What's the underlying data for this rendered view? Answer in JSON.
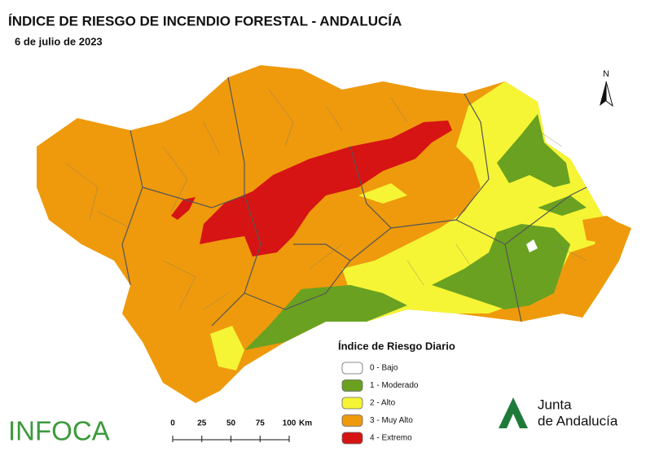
{
  "header": {
    "title": "ÍNDICE DE RIESGO DE INCENDIO FORESTAL - ANDALUCÍA",
    "date": "6 de julio de 2023"
  },
  "legend": {
    "title": "Índice de Riesgo Diario",
    "items": [
      {
        "label": "0 - Bajo",
        "color": "#ffffff"
      },
      {
        "label": "1 - Moderado",
        "color": "#6aa121"
      },
      {
        "label": "2 - Alto",
        "color": "#f5f535"
      },
      {
        "label": "3 - Muy Alto",
        "color": "#ee9a0c"
      },
      {
        "label": "4 - Extremo",
        "color": "#d61414"
      }
    ]
  },
  "scale_bar": {
    "ticks": [
      0,
      25,
      50,
      75,
      100
    ],
    "unit": "Km"
  },
  "north_arrow": "N",
  "logos": {
    "infoca": "INFOCA",
    "junta_line1": "Junta",
    "junta_line2": "de Andalucía"
  }
}
